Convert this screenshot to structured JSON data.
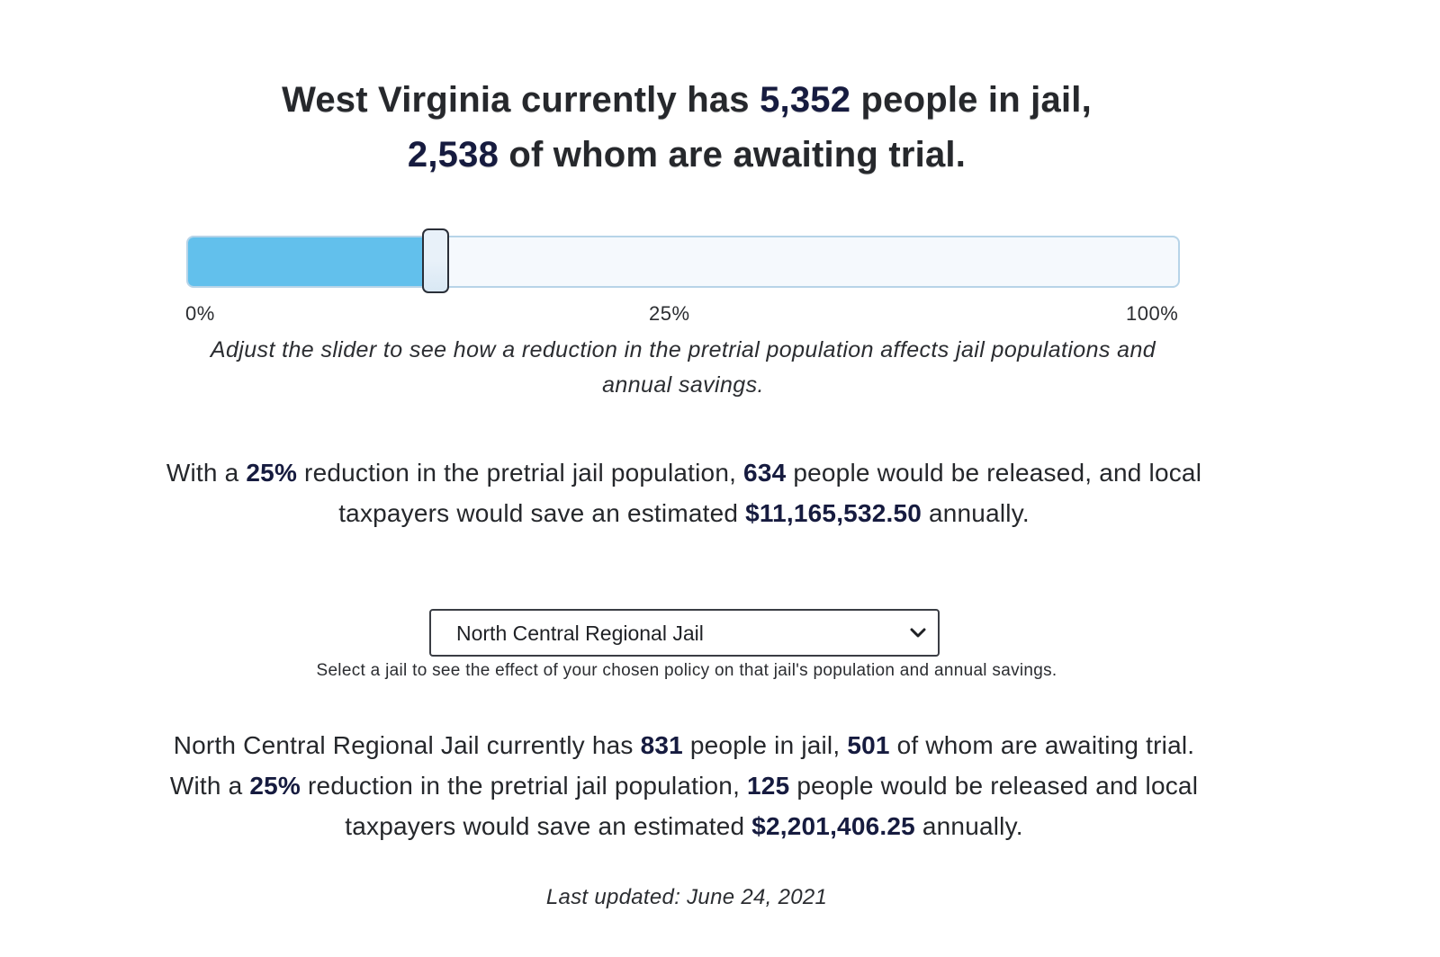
{
  "headline": {
    "line1_prefix": "West Virginia currently has ",
    "total_population": "5,352",
    "line1_suffix": " people in jail,",
    "pretrial_population": "2,538",
    "line2_suffix": " of whom are awaiting trial."
  },
  "slider": {
    "value_percent": 25,
    "fill_fraction": 0.237,
    "tick_labels": [
      "0%",
      "25%",
      "100%"
    ],
    "caption": "Adjust the slider to see how a reduction in the pretrial population affects jail populations and annual savings."
  },
  "statewide_result": {
    "text1": "With a ",
    "reduction": "25%",
    "text2": " reduction in the pretrial jail population, ",
    "released": "634",
    "text3": " people would be released, and local taxpayers would save an estimated ",
    "savings": "$11,165,532.50",
    "text4": " annually."
  },
  "jail_select": {
    "selected": "North Central Regional Jail",
    "caption": "Select a jail to see the effect of your chosen policy on that jail's population and annual savings."
  },
  "jail_result": {
    "text1": "North Central Regional Jail currently has ",
    "population": "831",
    "text2": " people in jail, ",
    "pretrial": "501",
    "text3": " of whom are awaiting trial. With a ",
    "reduction": "25%",
    "text4": " reduction in the pretrial jail population, ",
    "released": "125",
    "text5": " people would be released and local taxpayers would save an estimated ",
    "savings": "$2,201,406.25",
    "text6": " annually."
  },
  "footer": {
    "last_updated": "Last updated: June 24, 2021"
  },
  "colors": {
    "slider_fill": "#62c0ec",
    "slider_track": "#f5f9fd",
    "number_accent": "#161b3f"
  }
}
